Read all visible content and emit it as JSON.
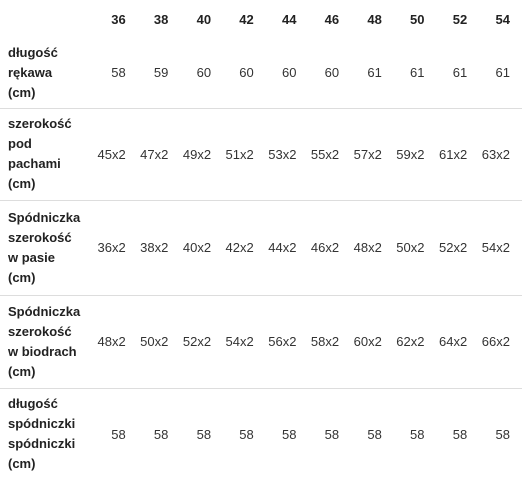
{
  "table": {
    "columns": [
      "36",
      "38",
      "40",
      "42",
      "44",
      "46",
      "48",
      "50",
      "52",
      "54"
    ],
    "rows": [
      {
        "label": [
          "długość",
          "rękawa",
          "(cm)"
        ],
        "cells": [
          "58",
          "59",
          "60",
          "60",
          "60",
          "60",
          "61",
          "61",
          "61",
          "61"
        ]
      },
      {
        "label": [
          "szerokość",
          "pod",
          "pachami",
          "(cm)"
        ],
        "cells": [
          "45x2",
          "47x2",
          "49x2",
          "51x2",
          "53x2",
          "55x2",
          "57x2",
          "59x2",
          "61x2",
          "63x2"
        ]
      },
      {
        "label": [
          "Spódniczka",
          "szerokość",
          "w pasie",
          "(cm)"
        ],
        "cells": [
          "36x2",
          "38x2",
          "40x2",
          "42x2",
          "44x2",
          "46x2",
          "48x2",
          "50x2",
          "52x2",
          "54x2"
        ]
      },
      {
        "label": [
          "Spódniczka",
          "szerokość",
          "w biodrach",
          "(cm)"
        ],
        "cells": [
          "48x2",
          "50x2",
          "52x2",
          "54x2",
          "56x2",
          "58x2",
          "60x2",
          "62x2",
          "64x2",
          "66x2"
        ]
      },
      {
        "label": [
          "długość",
          "spódniczki",
          "spódniczki",
          "(cm)"
        ],
        "cells": [
          "58",
          "58",
          "58",
          "58",
          "58",
          "58",
          "58",
          "58",
          "58",
          "58"
        ]
      }
    ]
  }
}
